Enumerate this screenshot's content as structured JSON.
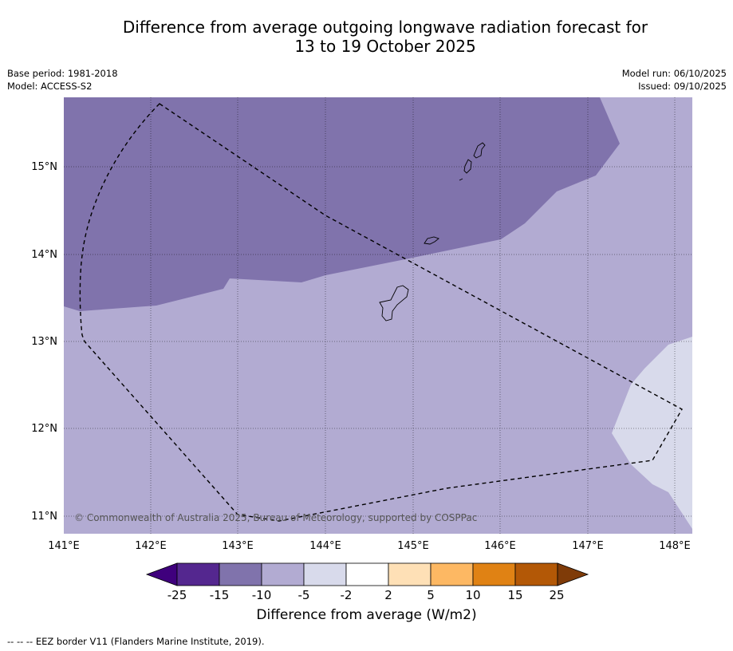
{
  "title": {
    "line1": "Difference from average outgoing longwave radiation forecast for",
    "line2": "13 to 19 October 2025"
  },
  "meta_left": {
    "base_period": "Base period: 1981-2018",
    "model": "Model: ACCESS-S2"
  },
  "meta_right": {
    "model_run": "Model run: 06/10/2025",
    "issued": "Issued: 09/10/2025"
  },
  "map": {
    "lon_labels": [
      "141°E",
      "142°E",
      "143°E",
      "144°E",
      "145°E",
      "146°E",
      "147°E",
      "148°E"
    ],
    "lat_labels": [
      "15°N",
      "14°N",
      "13°N",
      "12°N",
      "11°N"
    ],
    "copyright": "© Commonwealth of Australia 2025, Bureau of Meteorology, supported by COSPPac"
  },
  "colorbar": {
    "title": "Difference from average (W/m2)",
    "tick_labels": [
      "-25",
      "-15",
      "-10",
      "-5",
      "-2",
      "2",
      "5",
      "10",
      "15",
      "25"
    ],
    "colors": [
      "#3f007d",
      "#54278f",
      "#8073ac",
      "#b2abd2",
      "#d8daeb",
      "#ffffff",
      "#fee0b6",
      "#fdb863",
      "#e08214",
      "#b35806",
      "#7f3b08"
    ]
  },
  "footnote": "-- -- -- EEZ border V11 (Flanders Marine Institute, 2019)."
}
